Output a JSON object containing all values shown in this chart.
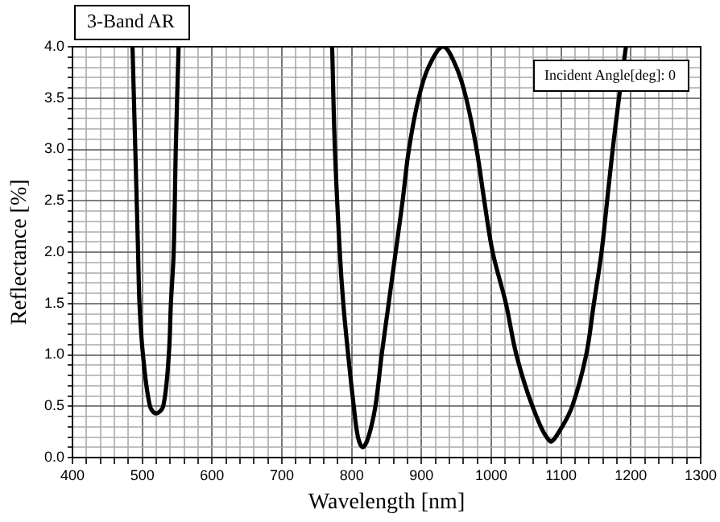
{
  "chart_data": {
    "type": "line",
    "title": "3-Band AR",
    "xlabel": "Wavelength [nm]",
    "ylabel": "Reflectance [%]",
    "annotations": [
      "Incident Angle[deg]: 0"
    ],
    "x": [
      486,
      494,
      496,
      501,
      511,
      520,
      530,
      538,
      541,
      545,
      548,
      552,
      650,
      772,
      776,
      783,
      788,
      795,
      803,
      809,
      816,
      824,
      834,
      843,
      853,
      863,
      873,
      882,
      896,
      910,
      931,
      950,
      964,
      979,
      990,
      1002,
      1021,
      1036,
      1059,
      1084,
      1097,
      1116,
      1136,
      1147,
      1158,
      1166,
      1174,
      1183,
      1193
    ],
    "series": [
      {
        "color": "#000000",
        "values": [
          4.0,
          2.0,
          1.5,
          1.0,
          0.5,
          0.43,
          0.5,
          1.0,
          1.5,
          2.0,
          3.0,
          4.0,
          null,
          4.0,
          3.0,
          2.0,
          1.5,
          1.0,
          0.5,
          0.2,
          0.1,
          0.2,
          0.5,
          1.0,
          1.5,
          2.0,
          2.5,
          3.0,
          3.5,
          3.8,
          4.0,
          3.8,
          3.5,
          3.0,
          2.5,
          2.0,
          1.5,
          1.0,
          0.5,
          0.16,
          0.25,
          0.5,
          1.0,
          1.5,
          2.0,
          2.5,
          3.0,
          3.5,
          4.0
        ]
      }
    ],
    "xlim": [
      400,
      1300
    ],
    "xticks": [
      400,
      {
        "value": 420,
        "label": null
      },
      {
        "value": 440,
        "label": null
      },
      {
        "value": 460,
        "label": null
      },
      {
        "value": 480,
        "label": null
      },
      500,
      {
        "value": 520,
        "label": null
      },
      {
        "value": 540,
        "label": null
      },
      {
        "value": 560,
        "label": null
      },
      {
        "value": 580,
        "label": null
      },
      600,
      {
        "value": 620,
        "label": null
      },
      {
        "value": 640,
        "label": null
      },
      {
        "value": 660,
        "label": null
      },
      {
        "value": 680,
        "label": null
      },
      700,
      {
        "value": 720,
        "label": null
      },
      {
        "value": 740,
        "label": null
      },
      {
        "value": 760,
        "label": null
      },
      {
        "value": 780,
        "label": null
      },
      800,
      {
        "value": 820,
        "label": null
      },
      {
        "value": 840,
        "label": null
      },
      {
        "value": 860,
        "label": null
      },
      {
        "value": 880,
        "label": null
      },
      900,
      {
        "value": 920,
        "label": null
      },
      {
        "value": 940,
        "label": null
      },
      {
        "value": 960,
        "label": null
      },
      {
        "value": 980,
        "label": null
      },
      1000,
      {
        "value": 1020,
        "label": null
      },
      {
        "value": 1040,
        "label": null
      },
      {
        "value": 1060,
        "label": null
      },
      {
        "value": 1080,
        "label": null
      },
      1100,
      {
        "value": 1120,
        "label": null
      },
      {
        "value": 1140,
        "label": null
      },
      {
        "value": 1160,
        "label": null
      },
      {
        "value": 1180,
        "label": null
      },
      1200,
      {
        "value": 1220,
        "label": null
      },
      {
        "value": 1240,
        "label": null
      },
      {
        "value": 1260,
        "label": null
      },
      {
        "value": 1280,
        "label": null
      },
      1300
    ],
    "ylim": [
      0,
      4.0
    ],
    "yticks": [
      {
        "value": 0,
        "label": "0.0"
      },
      {
        "value": 0.1,
        "label": null
      },
      {
        "value": 0.2,
        "label": null
      },
      {
        "value": 0.3,
        "label": null
      },
      {
        "value": 0.4,
        "label": null
      },
      {
        "value": 0.5,
        "label": "0.5"
      },
      {
        "value": 0.6,
        "label": null
      },
      {
        "value": 0.7,
        "label": null
      },
      {
        "value": 0.8,
        "label": null
      },
      {
        "value": 0.9,
        "label": null
      },
      {
        "value": 1.0,
        "label": "1.0"
      },
      {
        "value": 1.1,
        "label": null
      },
      {
        "value": 1.2,
        "label": null
      },
      {
        "value": 1.3,
        "label": null
      },
      {
        "value": 1.4,
        "label": null
      },
      {
        "value": 1.5,
        "label": "1.5"
      },
      {
        "value": 1.6,
        "label": null
      },
      {
        "value": 1.7,
        "label": null
      },
      {
        "value": 1.8,
        "label": null
      },
      {
        "value": 1.9,
        "label": null
      },
      {
        "value": 2.0,
        "label": "2.0"
      },
      {
        "value": 2.1,
        "label": null
      },
      {
        "value": 2.2,
        "label": null
      },
      {
        "value": 2.3,
        "label": null
      },
      {
        "value": 2.4,
        "label": null
      },
      {
        "value": 2.5,
        "label": "2.5"
      },
      {
        "value": 2.6,
        "label": null
      },
      {
        "value": 2.7,
        "label": null
      },
      {
        "value": 2.8,
        "label": null
      },
      {
        "value": 2.9,
        "label": null
      },
      {
        "value": 3.0,
        "label": "3.0"
      },
      {
        "value": 3.1,
        "label": null
      },
      {
        "value": 3.2,
        "label": null
      },
      {
        "value": 3.3,
        "label": null
      },
      {
        "value": 3.4,
        "label": null
      },
      {
        "value": 3.5,
        "label": "3.5"
      },
      {
        "value": 3.6,
        "label": null
      },
      {
        "value": 3.7,
        "label": null
      },
      {
        "value": 3.8,
        "label": null
      },
      {
        "value": 3.9,
        "label": null
      },
      {
        "value": 4.0,
        "label": "4.0"
      }
    ],
    "grid": true,
    "legend": false,
    "marker": "none",
    "line_style": "solid"
  }
}
